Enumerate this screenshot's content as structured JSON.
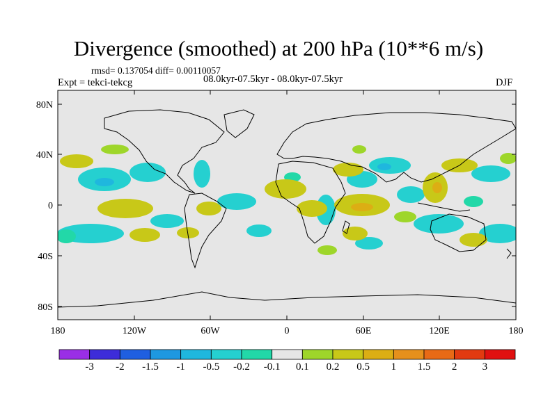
{
  "title": "Divergence (smoothed) at 200 hPa (10**6 m/s)",
  "stats_line": "rmsd= 0.137054 diff= 0.00110057",
  "experiment": "Expt = tekci-tekcg",
  "period": "08.0kyr-07.5kyr - 08.0kyr-07.5kyr",
  "season": "DJF",
  "y_axis_labels": [
    "80N",
    "40N",
    "0",
    "40S",
    "80S"
  ],
  "x_axis_labels": [
    "180",
    "120W",
    "60W",
    "0",
    "60E",
    "120E",
    "180"
  ],
  "colorbar": {
    "labels": [
      "-3",
      "-2",
      "-1.5",
      "-1",
      "-0.5",
      "-0.2",
      "-0.1",
      "0.1",
      "0.2",
      "0.5",
      "1",
      "1.5",
      "2",
      "3"
    ],
    "colors": [
      "#9a2ee6",
      "#3d2cd9",
      "#1f5fe0",
      "#1e98e0",
      "#1fb7de",
      "#25d0d0",
      "#22d8a8",
      "#e6e6e6",
      "#9ed62a",
      "#c8c818",
      "#dcae14",
      "#e6901c",
      "#e86a16",
      "#e23a10",
      "#e01010"
    ]
  },
  "map": {
    "background_color": "#e6e6e6",
    "positive_color": "#c8c818",
    "positive_weak_color": "#9ed62a",
    "positive_strong_color": "#dcae14",
    "negative_color": "#25d0d0",
    "negative_weak_color": "#22d8a8",
    "negative_strong_color": "#1fb7de"
  }
}
